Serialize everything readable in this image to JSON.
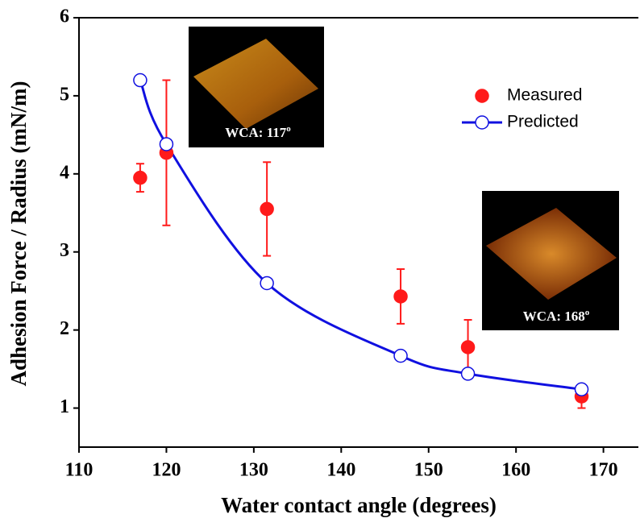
{
  "chart_data": {
    "type": "scatter",
    "x_label": "Water contact angle (degrees)",
    "y_label": "Adhesion Force / Radius (mN/m)",
    "xlim": [
      110,
      174
    ],
    "xticks": [
      110,
      120,
      130,
      140,
      150,
      160,
      170
    ],
    "ylim": [
      0.5,
      6
    ],
    "yticks": [
      1,
      2,
      3,
      4,
      5,
      6
    ],
    "legend": "upper right",
    "series": [
      {
        "name": "Measured",
        "color": "#ff1a1a",
        "marker": "filled",
        "x": [
          117,
          120,
          131.5,
          146.8,
          154.5,
          167.5
        ],
        "values": [
          3.95,
          4.27,
          3.55,
          2.43,
          1.78,
          1.15
        ],
        "errors": [
          0.18,
          0.93,
          0.6,
          0.35,
          0.35,
          0.15
        ]
      },
      {
        "name": "Predicted",
        "color": "#1010e0",
        "marker": "open",
        "line": true,
        "x": [
          117,
          120,
          131.5,
          146.8,
          154.5,
          167.5
        ],
        "values": [
          5.2,
          4.38,
          2.6,
          1.67,
          1.44,
          1.24
        ]
      }
    ],
    "annotations": [
      {
        "text": "WCA: 117",
        "sup": "o"
      },
      {
        "text": "WCA: 168",
        "sup": "o"
      }
    ]
  }
}
